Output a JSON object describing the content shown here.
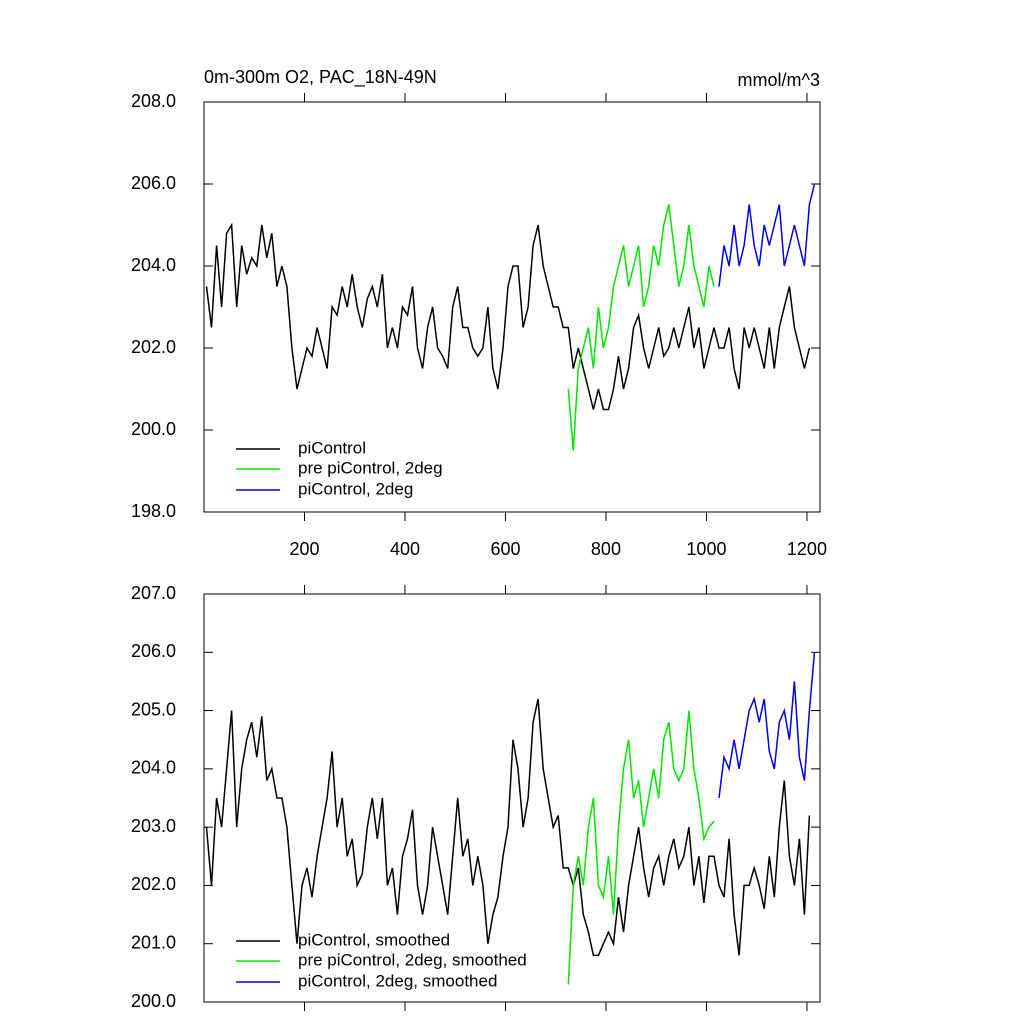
{
  "chart_data": [
    {
      "type": "line",
      "title": "0m-300m O2, PAC_18N-49N",
      "units": "mmol/m^3",
      "xlim": [
        0,
        1226
      ],
      "xticks": [
        200,
        400,
        600,
        800,
        1000,
        1200
      ],
      "show_xtick_labels": true,
      "ylim": [
        198,
        208
      ],
      "yticks": [
        {
          "value": 198,
          "label": "198.0"
        },
        {
          "value": 200,
          "label": "200.0"
        },
        {
          "value": 202,
          "label": "202.0"
        },
        {
          "value": 204,
          "label": "204.0"
        },
        {
          "value": 206,
          "label": "206.0"
        },
        {
          "value": 208,
          "label": "208.0"
        }
      ],
      "legend": "lower left",
      "series": [
        {
          "name": "piControl",
          "color": "#000000",
          "x": [
            5,
            15,
            25,
            35,
            45,
            55,
            65,
            75,
            85,
            95,
            105,
            115,
            125,
            135,
            145,
            155,
            165,
            175,
            185,
            195,
            205,
            215,
            225,
            235,
            245,
            255,
            265,
            275,
            285,
            295,
            305,
            315,
            325,
            335,
            345,
            355,
            365,
            375,
            385,
            395,
            405,
            415,
            425,
            435,
            445,
            455,
            465,
            475,
            485,
            495,
            505,
            515,
            525,
            535,
            545,
            555,
            565,
            575,
            585,
            595,
            605,
            615,
            625,
            635,
            645,
            655,
            665,
            675,
            685,
            695,
            705,
            715,
            725,
            735,
            745,
            755,
            765,
            775,
            785,
            795,
            805,
            815,
            825,
            835,
            845,
            855,
            865,
            875,
            885,
            895,
            905,
            915,
            925,
            935,
            945,
            955,
            965,
            975,
            985,
            995,
            1005,
            1015,
            1025,
            1035,
            1045,
            1055,
            1065,
            1075,
            1085,
            1095,
            1105,
            1115,
            1125,
            1135,
            1145,
            1155,
            1165,
            1175,
            1185,
            1195,
            1205
          ],
          "values": [
            203.5,
            202.5,
            204.5,
            203.0,
            204.8,
            205.0,
            203.0,
            204.5,
            203.8,
            204.2,
            204.0,
            205.0,
            204.2,
            204.8,
            203.5,
            204.0,
            203.5,
            202.0,
            201.0,
            201.5,
            202.0,
            201.8,
            202.5,
            202.0,
            201.5,
            203.0,
            202.8,
            203.5,
            203.0,
            203.8,
            203.0,
            202.5,
            203.2,
            203.5,
            203.0,
            203.8,
            202.0,
            202.5,
            202.0,
            203.0,
            202.8,
            203.5,
            202.0,
            201.5,
            202.5,
            203.0,
            202.0,
            201.8,
            201.5,
            203.0,
            203.5,
            202.5,
            202.5,
            202.0,
            201.8,
            202.0,
            203.0,
            201.5,
            201.0,
            202.0,
            203.5,
            204.0,
            204.0,
            202.5,
            203.0,
            204.5,
            205.0,
            204.0,
            203.5,
            203.0,
            203.0,
            202.5,
            202.5,
            201.5,
            202.0,
            201.5,
            201.0,
            200.5,
            201.0,
            200.5,
            200.5,
            201.0,
            201.8,
            201.0,
            201.5,
            202.5,
            202.8,
            202.0,
            201.5,
            202.0,
            202.5,
            201.8,
            202.0,
            202.5,
            202.0,
            202.5,
            203.0,
            202.0,
            202.5,
            201.5,
            202.0,
            202.5,
            202.0,
            202.0,
            202.5,
            201.5,
            201.0,
            202.5,
            202.0,
            202.5,
            202.0,
            201.5,
            202.5,
            201.5,
            202.5,
            203.0,
            203.5,
            202.5,
            202.0,
            201.5,
            202.0
          ]
        },
        {
          "name": "pre piControl, 2deg",
          "color": "#00e600",
          "x": [
            725,
            735,
            745,
            755,
            765,
            775,
            785,
            795,
            805,
            815,
            825,
            835,
            845,
            855,
            865,
            875,
            885,
            895,
            905,
            915,
            925,
            935,
            945,
            955,
            965,
            975,
            985,
            995,
            1005,
            1015
          ],
          "values": [
            201.0,
            199.5,
            201.5,
            202.0,
            202.5,
            201.5,
            203.0,
            202.0,
            202.5,
            203.5,
            204.0,
            204.5,
            203.5,
            204.0,
            204.5,
            203.0,
            203.5,
            204.5,
            204.0,
            205.0,
            205.5,
            204.5,
            203.5,
            204.0,
            205.0,
            204.0,
            203.5,
            203.0,
            204.0,
            203.5
          ]
        },
        {
          "name": "piControl, 2deg",
          "color": "#0000e6",
          "x": [
            1025,
            1035,
            1045,
            1055,
            1065,
            1075,
            1085,
            1095,
            1105,
            1115,
            1125,
            1135,
            1145,
            1155,
            1165,
            1175,
            1185,
            1195,
            1205,
            1215
          ],
          "values": [
            203.5,
            204.5,
            204.0,
            205.0,
            204.0,
            204.5,
            205.5,
            204.5,
            204.0,
            205.0,
            204.5,
            205.0,
            205.5,
            204.0,
            204.5,
            205.0,
            204.5,
            204.0,
            205.5,
            206.0
          ]
        }
      ]
    },
    {
      "type": "line",
      "xlim": [
        0,
        1226
      ],
      "xticks": [
        200,
        400,
        600,
        800,
        1000,
        1200
      ],
      "show_xtick_labels": false,
      "ylim": [
        200,
        207
      ],
      "yticks": [
        {
          "value": 200,
          "label": "200.0"
        },
        {
          "value": 201,
          "label": "201.0"
        },
        {
          "value": 202,
          "label": "202.0"
        },
        {
          "value": 203,
          "label": "203.0"
        },
        {
          "value": 204,
          "label": "204.0"
        },
        {
          "value": 205,
          "label": "205.0"
        },
        {
          "value": 206,
          "label": "206.0"
        },
        {
          "value": 207,
          "label": "207.0"
        }
      ],
      "legend": "lower left",
      "series": [
        {
          "name": "piControl, smoothed",
          "color": "#000000",
          "x": [
            5,
            15,
            25,
            35,
            45,
            55,
            65,
            75,
            85,
            95,
            105,
            115,
            125,
            135,
            145,
            155,
            165,
            175,
            185,
            195,
            205,
            215,
            225,
            235,
            245,
            255,
            265,
            275,
            285,
            295,
            305,
            315,
            325,
            335,
            345,
            355,
            365,
            375,
            385,
            395,
            405,
            415,
            425,
            435,
            445,
            455,
            465,
            475,
            485,
            495,
            505,
            515,
            525,
            535,
            545,
            555,
            565,
            575,
            585,
            595,
            605,
            615,
            625,
            635,
            645,
            655,
            665,
            675,
            685,
            695,
            705,
            715,
            725,
            735,
            745,
            755,
            765,
            775,
            785,
            795,
            805,
            815,
            825,
            835,
            845,
            855,
            865,
            875,
            885,
            895,
            905,
            915,
            925,
            935,
            945,
            955,
            965,
            975,
            985,
            995,
            1005,
            1015,
            1025,
            1035,
            1045,
            1055,
            1065,
            1075,
            1085,
            1095,
            1105,
            1115,
            1125,
            1135,
            1145,
            1155,
            1165,
            1175,
            1185,
            1195,
            1205
          ],
          "values": [
            203.0,
            202.0,
            203.5,
            203.0,
            204.0,
            205.0,
            203.0,
            204.0,
            204.5,
            204.8,
            204.2,
            204.9,
            203.8,
            204.0,
            203.5,
            203.5,
            203.0,
            202.0,
            201.0,
            202.0,
            202.3,
            201.8,
            202.5,
            203.0,
            203.5,
            204.3,
            203.0,
            203.5,
            202.5,
            202.8,
            202.0,
            202.2,
            203.0,
            203.5,
            202.8,
            203.5,
            202.0,
            202.3,
            201.5,
            202.5,
            202.8,
            203.3,
            202.0,
            201.5,
            202.0,
            203.0,
            202.5,
            202.0,
            201.5,
            202.5,
            203.5,
            202.5,
            202.8,
            202.0,
            202.5,
            202.0,
            201.0,
            201.5,
            201.8,
            202.5,
            203.0,
            204.5,
            204.0,
            203.0,
            203.5,
            204.8,
            205.2,
            204.0,
            203.5,
            203.0,
            203.2,
            202.3,
            202.3,
            202.0,
            202.3,
            201.5,
            201.2,
            200.8,
            200.8,
            201.0,
            201.2,
            201.0,
            201.8,
            201.2,
            202.0,
            202.5,
            203.0,
            202.3,
            201.8,
            202.3,
            202.5,
            202.0,
            202.5,
            202.8,
            202.3,
            202.5,
            203.0,
            202.0,
            202.5,
            201.7,
            202.5,
            202.5,
            202.0,
            201.8,
            202.8,
            201.5,
            200.8,
            202.0,
            202.0,
            202.3,
            202.0,
            201.6,
            202.5,
            201.8,
            203.0,
            203.8,
            202.5,
            202.0,
            202.8,
            201.5,
            203.2
          ]
        },
        {
          "name": "pre piControl, 2deg, smoothed",
          "color": "#00e600",
          "x": [
            725,
            735,
            745,
            755,
            765,
            775,
            785,
            795,
            805,
            815,
            825,
            835,
            845,
            855,
            865,
            875,
            885,
            895,
            905,
            915,
            925,
            935,
            945,
            955,
            965,
            975,
            985,
            995,
            1005,
            1015
          ],
          "values": [
            200.3,
            202.0,
            202.5,
            202.0,
            203.0,
            203.5,
            202.0,
            201.8,
            202.5,
            201.5,
            203.0,
            204.0,
            204.5,
            203.5,
            203.8,
            203.0,
            203.5,
            204.0,
            203.5,
            204.5,
            204.8,
            204.0,
            203.8,
            204.0,
            205.0,
            204.0,
            203.5,
            202.8,
            203.0,
            203.1
          ]
        },
        {
          "name": "piControl, 2deg, smoothed",
          "color": "#0000e6",
          "x": [
            1025,
            1035,
            1045,
            1055,
            1065,
            1075,
            1085,
            1095,
            1105,
            1115,
            1125,
            1135,
            1145,
            1155,
            1165,
            1175,
            1185,
            1195,
            1205,
            1215
          ],
          "values": [
            203.5,
            204.2,
            204.0,
            204.5,
            204.0,
            204.5,
            205.0,
            205.2,
            204.8,
            205.2,
            204.3,
            204.0,
            204.8,
            205.0,
            204.5,
            205.5,
            204.2,
            203.8,
            205.0,
            206.0
          ]
        }
      ]
    }
  ]
}
